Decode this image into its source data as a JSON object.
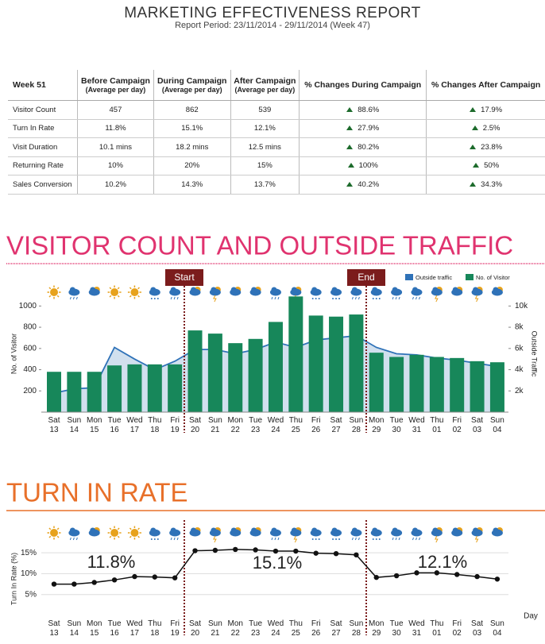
{
  "header": {
    "title": "MARKETING EFFECTIVENESS REPORT",
    "subtitle": "Report Period: 23/11/2014 - 29/11/2014 (Week 47)"
  },
  "table": {
    "header": [
      {
        "title": "Week 51"
      },
      {
        "title": "Before Campaign",
        "subtitle": "(Average per day)"
      },
      {
        "title": "During Campaign",
        "subtitle": "(Average per day)"
      },
      {
        "title": "After Campaign",
        "subtitle": "(Average per day)"
      },
      {
        "title": "% Changes During Campaign"
      },
      {
        "title": "% Changes After Campaign"
      }
    ],
    "rows": [
      [
        "Visitor Count",
        "457",
        "862",
        "539",
        "88.6%",
        "17.9%"
      ],
      [
        "Turn In Rate",
        "11.8%",
        "15.1%",
        "12.1%",
        "27.9%",
        "2.5%"
      ],
      [
        "Visit Duration",
        "10.1 mins",
        "18.2 mins",
        "12.5 mins",
        "80.2%",
        "23.8%"
      ],
      [
        "Returning Rate",
        "10%",
        "20%",
        "15%",
        "100%",
        "50%"
      ],
      [
        "Sales Conversion",
        "10.2%",
        "14.3%",
        "13.7%",
        "40.2%",
        "34.3%"
      ]
    ]
  },
  "chart_data": [
    {
      "type": "bar",
      "title": "VISITOR COUNT AND OUTSIDE TRAFFIC",
      "categories": [
        "Sat 13",
        "Sun 14",
        "Mon 15",
        "Tue 16",
        "Wed 17",
        "Thu 18",
        "Fri 19",
        "Sat 20",
        "Sun 21",
        "Mon 22",
        "Tue 23",
        "Wed 24",
        "Thu 25",
        "Fri 26",
        "Sat 27",
        "Sun 28",
        "Mon 29",
        "Tue 30",
        "Wed 31",
        "Thu 01",
        "Fri 02",
        "Sat 03",
        "Sun 04"
      ],
      "series": [
        {
          "name": "No. of Visitor",
          "color": "#17875a",
          "values": [
            380,
            380,
            380,
            440,
            450,
            450,
            450,
            770,
            740,
            650,
            690,
            850,
            1090,
            910,
            900,
            920,
            560,
            520,
            540,
            520,
            510,
            480,
            470
          ]
        },
        {
          "name": "Outside traffic",
          "type": "area",
          "axis": "y2",
          "color": "#2f72b8",
          "values": [
            1800,
            2200,
            2300,
            6100,
            5000,
            4000,
            4800,
            5900,
            5900,
            5500,
            5900,
            6600,
            6100,
            6800,
            7000,
            7200,
            6100,
            5500,
            5400,
            5100,
            4900,
            4600,
            4300
          ]
        }
      ],
      "y_label": "No. of Visitor",
      "y2_label": "Outside Traffic",
      "ylim": [
        0,
        1100
      ],
      "yticks": [
        200,
        400,
        600,
        800,
        1000
      ],
      "y2lim": [
        0,
        11000
      ],
      "y2ticks": [
        {
          "value": 2000,
          "label": "2k"
        },
        {
          "value": 4000,
          "label": "4k"
        },
        {
          "value": 6000,
          "label": "6k"
        },
        {
          "value": 8000,
          "label": "8k"
        },
        {
          "value": 10000,
          "label": "10k"
        }
      ],
      "annotations": [
        "Start",
        "End"
      ],
      "legend": "top-right"
    },
    {
      "type": "line",
      "title": "TURN IN RATE",
      "categories": [
        "Sat 13",
        "Sun 14",
        "Mon 15",
        "Tue 16",
        "Wed 17",
        "Thu 18",
        "Fri 19",
        "Sat 20",
        "Sun 21",
        "Mon 22",
        "Tue 23",
        "Wed 24",
        "Thu 25",
        "Fri 26",
        "Sat 27",
        "Sun 28",
        "Mon 29",
        "Tue 30",
        "Wed 31",
        "Thu 01",
        "Fri 02",
        "Sat 03",
        "Sun 04"
      ],
      "series": [
        {
          "name": "Turn In Rate",
          "color": "#111111",
          "values": [
            7.5,
            7.5,
            7.9,
            8.5,
            9.3,
            9.2,
            9.0,
            15.5,
            15.6,
            15.8,
            15.7,
            15.4,
            15.4,
            14.9,
            14.8,
            14.5,
            9.1,
            9.5,
            10.2,
            10.2,
            9.8,
            9.3,
            8.7
          ]
        }
      ],
      "y_label": "Turn In Rate (%)",
      "x_label": "Day",
      "ylim": [
        0,
        17.5
      ],
      "yticks": [
        {
          "value": 5,
          "label": "5%"
        },
        {
          "value": 10,
          "label": "10%"
        },
        {
          "value": 15,
          "label": "15%"
        }
      ],
      "annotations": [
        "11.8%",
        "15.1%",
        "12.1%"
      ]
    }
  ]
}
